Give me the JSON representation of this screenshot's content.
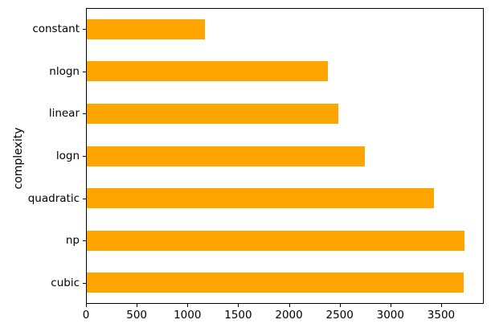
{
  "figure": {
    "background": "#ffffff",
    "text_color": "#000000",
    "spine_color": "#000000"
  },
  "chart_data": {
    "type": "bar",
    "orientation": "horizontal",
    "title": "",
    "xlabel": "",
    "ylabel": "complexity",
    "categories": [
      "constant",
      "nlogn",
      "linear",
      "logn",
      "quadratic",
      "np",
      "cubic"
    ],
    "values": [
      1170,
      2380,
      2490,
      2750,
      3430,
      3730,
      3720
    ],
    "bar_color": "#FFA500",
    "xlim": [
      0,
      3920
    ],
    "xticks": [
      0,
      500,
      1000,
      1500,
      2000,
      2500,
      3000,
      3500
    ],
    "grid": false,
    "legend_position": "none"
  }
}
